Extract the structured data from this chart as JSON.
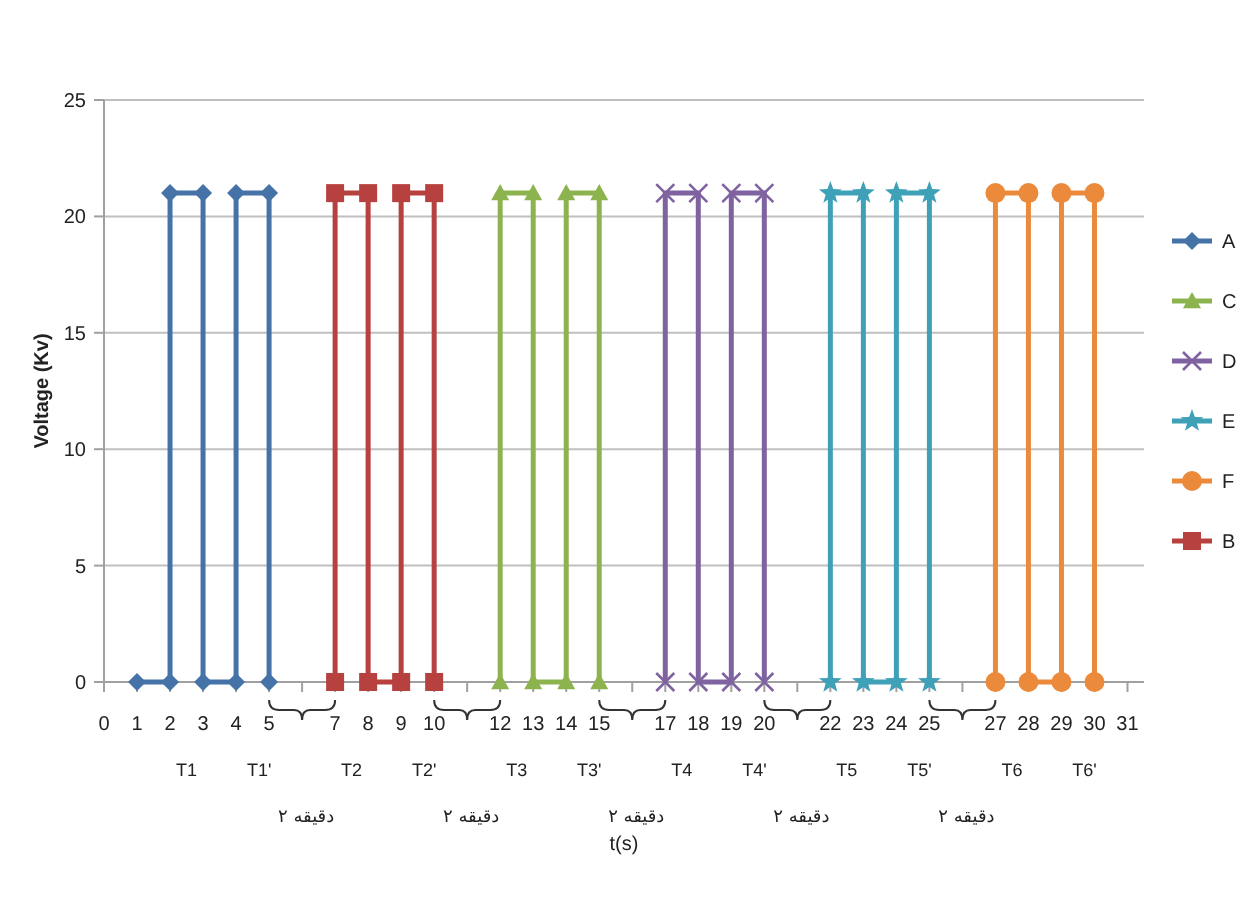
{
  "chart_data": {
    "type": "line",
    "xlabel": "t(s)",
    "ylabel": "Voltage (Kv)",
    "xlim": [
      0,
      31.5
    ],
    "ylim": [
      0,
      25
    ],
    "xticks": [
      0,
      1,
      2,
      3,
      4,
      5,
      {
        "value": 6,
        "label": null
      },
      7,
      8,
      9,
      10,
      {
        "value": 11,
        "label": null
      },
      12,
      13,
      14,
      15,
      {
        "value": 16,
        "label": null
      },
      17,
      18,
      19,
      20,
      {
        "value": 21,
        "label": null
      },
      22,
      23,
      24,
      25,
      {
        "value": 26,
        "label": null
      },
      27,
      28,
      29,
      30,
      31
    ],
    "yticks": [
      0,
      5,
      10,
      15,
      20,
      25
    ],
    "grid": "y",
    "legend": "right",
    "series": [
      {
        "name": "A",
        "color": "#4572a7",
        "marker": "diamond",
        "x": [
          1,
          2,
          2,
          3,
          3,
          4,
          4,
          5,
          5
        ],
        "values": [
          0,
          0,
          21,
          21,
          0,
          0,
          21,
          21,
          0
        ]
      },
      {
        "name": "C",
        "color": "#8db34f",
        "marker": "triangle",
        "x": [
          12,
          12,
          13,
          13,
          14,
          14,
          15,
          15
        ],
        "values": [
          0,
          21,
          21,
          0,
          0,
          21,
          21,
          0
        ]
      },
      {
        "name": "D",
        "color": "#7f63a1",
        "marker": "cross",
        "x": [
          17,
          17,
          18,
          18,
          19,
          19,
          20,
          20
        ],
        "values": [
          0,
          21,
          21,
          0,
          0,
          21,
          21,
          0
        ]
      },
      {
        "name": "E",
        "color": "#3fa1b8",
        "marker": "star",
        "x": [
          22,
          22,
          23,
          23,
          24,
          24,
          25,
          25
        ],
        "values": [
          0,
          21,
          21,
          0,
          0,
          21,
          21,
          0
        ]
      },
      {
        "name": "F",
        "color": "#ea8a3a",
        "marker": "circle",
        "x": [
          27,
          27,
          28,
          28,
          29,
          29,
          30,
          30
        ],
        "values": [
          0,
          21,
          21,
          0,
          0,
          21,
          21,
          0
        ]
      },
      {
        "name": "B",
        "color": "#b7413f",
        "marker": "square",
        "x": [
          7,
          7,
          8,
          8,
          9,
          9,
          10,
          10
        ],
        "values": [
          0,
          21,
          21,
          0,
          0,
          21,
          21,
          0
        ]
      }
    ],
    "annotations": [
      "T1",
      "T1'",
      "T2",
      "T2'",
      "T3",
      "T3'",
      "T4",
      "T4'",
      "T5",
      "T5'",
      "T6",
      "T6'",
      "دقیقه ۲",
      "دقیقه ۲",
      "دقیقه ۲",
      "دقیقه ۲",
      "دقیقه ۲"
    ]
  }
}
